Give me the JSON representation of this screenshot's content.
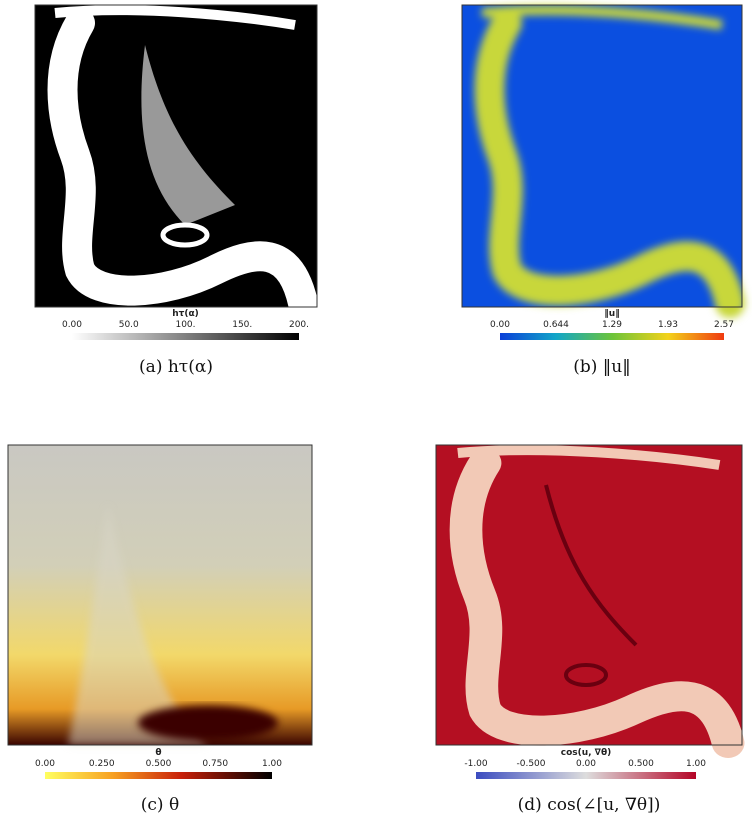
{
  "panels": [
    {
      "colorbar_title": "hτ(α)",
      "ticks": [
        "0.00",
        "50.0",
        "100.",
        "150.",
        "200."
      ],
      "caption": "(a) hτ(α)"
    },
    {
      "colorbar_title": "‖u‖",
      "ticks": [
        "0.00",
        "0.644",
        "1.29",
        "1.93",
        "2.57"
      ],
      "caption": "(b) ‖u‖"
    },
    {
      "colorbar_title": "θ",
      "ticks": [
        "0.00",
        "0.250",
        "0.500",
        "0.750",
        "1.00"
      ],
      "caption": "(c) θ"
    },
    {
      "colorbar_title": "cos(u, ∇θ)",
      "ticks": [
        "-1.00",
        "-0.500",
        "0.00",
        "0.500",
        "1.00"
      ],
      "caption": "(d) cos(∠[u, ∇θ])"
    }
  ]
}
